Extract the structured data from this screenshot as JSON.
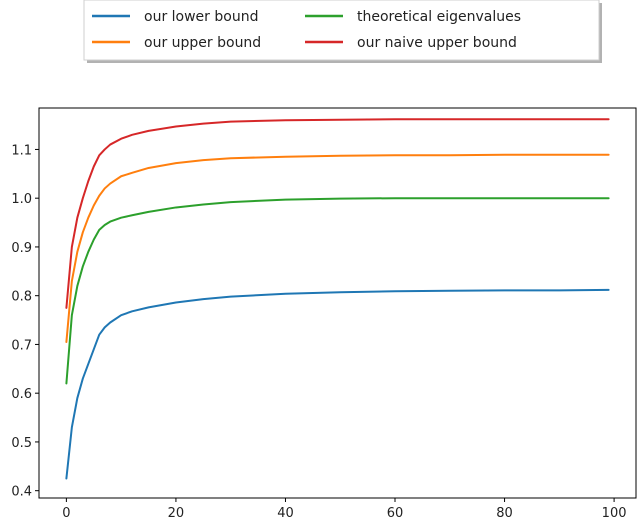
{
  "chart_data": {
    "type": "line",
    "title": "",
    "xlabel": "",
    "ylabel": "",
    "xlim": [
      -5,
      104
    ],
    "ylim": [
      0.385,
      1.185
    ],
    "xticks": [
      0,
      20,
      40,
      60,
      80,
      100
    ],
    "yticks": [
      0.4,
      0.5,
      0.6,
      0.7,
      0.8,
      0.9,
      1.0,
      1.1
    ],
    "xtick_labels": [
      "0",
      "20",
      "40",
      "60",
      "80",
      "100"
    ],
    "ytick_labels": [
      "0.4",
      "0.5",
      "0.6",
      "0.7",
      "0.8",
      "0.9",
      "1.0",
      "1.1"
    ],
    "grid": false,
    "legend_position": "top-center",
    "x": [
      0,
      1,
      2,
      3,
      4,
      5,
      6,
      7,
      8,
      10,
      12,
      15,
      20,
      25,
      30,
      40,
      50,
      60,
      70,
      80,
      90,
      99
    ],
    "series": [
      {
        "name": "our lower bound",
        "color": "#1f77b4",
        "values": [
          0.425,
          0.53,
          0.59,
          0.63,
          0.66,
          0.69,
          0.72,
          0.735,
          0.745,
          0.76,
          0.768,
          0.776,
          0.786,
          0.793,
          0.798,
          0.804,
          0.807,
          0.809,
          0.81,
          0.811,
          0.811,
          0.812
        ]
      },
      {
        "name": "our upper bound",
        "color": "#ff7f0e",
        "values": [
          0.705,
          0.83,
          0.89,
          0.93,
          0.96,
          0.985,
          1.005,
          1.02,
          1.03,
          1.045,
          1.052,
          1.062,
          1.072,
          1.078,
          1.082,
          1.085,
          1.087,
          1.088,
          1.088,
          1.089,
          1.089,
          1.089
        ]
      },
      {
        "name": "theoretical eigenvalues",
        "color": "#2ca02c",
        "values": [
          0.62,
          0.76,
          0.82,
          0.86,
          0.89,
          0.915,
          0.935,
          0.945,
          0.952,
          0.96,
          0.965,
          0.972,
          0.981,
          0.987,
          0.992,
          0.997,
          0.999,
          1.0,
          1.0,
          1.0,
          1.0,
          1.0
        ]
      },
      {
        "name": "our naive upper bound",
        "color": "#d62728",
        "values": [
          0.775,
          0.9,
          0.96,
          1.0,
          1.035,
          1.065,
          1.088,
          1.1,
          1.11,
          1.122,
          1.13,
          1.138,
          1.147,
          1.153,
          1.157,
          1.16,
          1.161,
          1.162,
          1.162,
          1.162,
          1.162,
          1.162
        ]
      }
    ]
  }
}
